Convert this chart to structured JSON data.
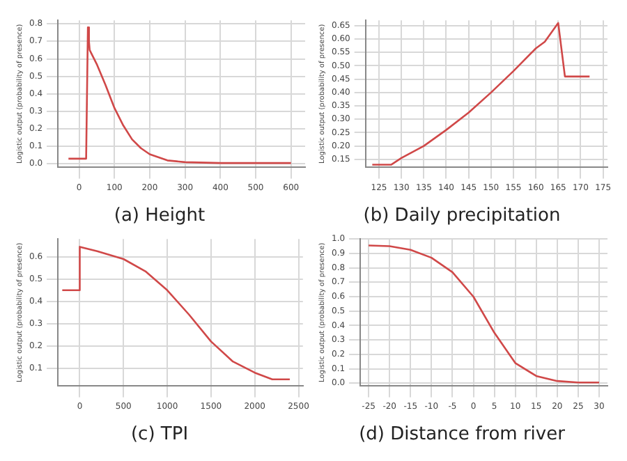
{
  "chart_data": [
    {
      "type": "line",
      "title": "(a) Height",
      "ylabel": "Logistic output (probability of presence)",
      "color": "#d04848",
      "grid": true,
      "x": [
        -30,
        0,
        20,
        25,
        28,
        30,
        50,
        75,
        100,
        125,
        150,
        175,
        200,
        250,
        300,
        400,
        500,
        600
      ],
      "values": [
        0.03,
        0.03,
        0.03,
        0.78,
        0.7,
        0.65,
        0.57,
        0.45,
        0.32,
        0.22,
        0.14,
        0.09,
        0.055,
        0.02,
        0.01,
        0.005,
        0.005,
        0.005
      ],
      "xlim": [
        -60,
        640
      ],
      "xticks": [
        0,
        100,
        200,
        300,
        400,
        500,
        600
      ],
      "ylim": [
        -0.02,
        0.82
      ],
      "yticks": [
        {
          "value": 0,
          "label": "0.0"
        },
        {
          "value": 0.1,
          "label": "0.1"
        },
        {
          "value": 0.2,
          "label": "0.2"
        },
        {
          "value": 0.3,
          "label": "0.3"
        },
        {
          "value": 0.4,
          "label": "0.4"
        },
        {
          "value": 0.5,
          "label": "0.5"
        },
        {
          "value": 0.6,
          "label": "0.6"
        },
        {
          "value": 0.7,
          "label": "0.7"
        },
        {
          "value": 0.8,
          "label": "0.8"
        }
      ]
    },
    {
      "type": "line",
      "title": "(b) Daily precipitation",
      "ylabel": "Logistic output (probability of presence)",
      "color": "#d04848",
      "grid": true,
      "x": [
        123.5,
        127.7,
        130,
        135,
        140,
        145,
        150,
        155,
        160,
        162,
        165,
        166.5,
        172
      ],
      "values": [
        0.13,
        0.13,
        0.155,
        0.2,
        0.26,
        0.325,
        0.4,
        0.48,
        0.565,
        0.59,
        0.66,
        0.46,
        0.46
      ],
      "xlim": [
        122,
        176
      ],
      "xticks": [
        125,
        130,
        135,
        140,
        145,
        150,
        155,
        160,
        165,
        170,
        175
      ],
      "ylim": [
        0.12,
        0.67
      ],
      "yticks": [
        0.15,
        {
          "value": 0.2,
          "label": "0.20"
        },
        0.25,
        {
          "value": 0.3,
          "label": "0.30"
        },
        0.35,
        {
          "value": 0.4,
          "label": "0.40"
        },
        0.45,
        {
          "value": 0.5,
          "label": "0.50"
        },
        0.55,
        {
          "value": 0.6,
          "label": "0.60"
        },
        0.65
      ]
    },
    {
      "type": "line",
      "title": "(c) TPI",
      "ylabel": "Logistic output (probability of presence)",
      "color": "#d04848",
      "grid": true,
      "x": [
        -200,
        0,
        0,
        200,
        500,
        750,
        1000,
        1250,
        1500,
        1750,
        2000,
        2200,
        2400
      ],
      "values": [
        0.45,
        0.45,
        0.645,
        0.625,
        0.59,
        0.535,
        0.45,
        0.34,
        0.22,
        0.13,
        0.08,
        0.05,
        0.05
      ],
      "xlim": [
        -250,
        2550
      ],
      "xticks": [
        0,
        500,
        1000,
        1500,
        2000,
        2500
      ],
      "ylim": [
        0.02,
        0.68
      ],
      "yticks": [
        0.1,
        0.2,
        0.3,
        0.4,
        0.5,
        0.6
      ]
    },
    {
      "type": "line",
      "title": "(d) Distance from river",
      "ylabel": "Logistic output (probability of presence)",
      "color": "#d04848",
      "grid": true,
      "x": [
        -25,
        -20,
        -15,
        -10,
        -5,
        0,
        5,
        10,
        15,
        20,
        25,
        30
      ],
      "values": [
        0.955,
        0.95,
        0.925,
        0.87,
        0.77,
        0.6,
        0.35,
        0.14,
        0.05,
        0.015,
        0.005,
        0.005
      ],
      "xlim": [
        -27,
        32
      ],
      "xticks": [
        -25,
        -20,
        -15,
        -10,
        -5,
        0,
        5,
        10,
        15,
        20,
        25,
        30
      ],
      "ylim": [
        -0.02,
        1.0
      ],
      "yticks": [
        {
          "value": 0,
          "label": "0.0"
        },
        0.1,
        0.2,
        0.3,
        0.4,
        0.5,
        0.6,
        0.7,
        0.8,
        0.9,
        {
          "value": 1,
          "label": "1.0"
        }
      ]
    }
  ]
}
